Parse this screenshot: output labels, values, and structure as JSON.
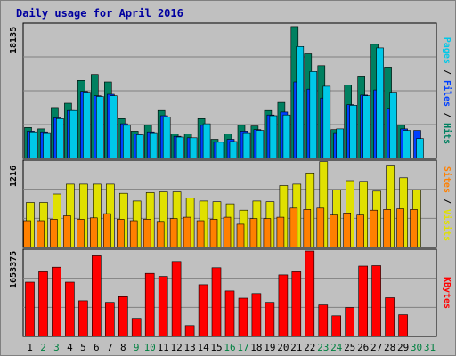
{
  "chart_data": {
    "type": "bar",
    "title": "Daily usage for April 2016",
    "days": [
      "1",
      "2",
      "3",
      "4",
      "5",
      "6",
      "7",
      "8",
      "9",
      "10",
      "11",
      "12",
      "13",
      "14",
      "15",
      "16",
      "17",
      "18",
      "19",
      "20",
      "21",
      "22",
      "23",
      "24",
      "25",
      "26",
      "27",
      "28",
      "29",
      "30",
      "31"
    ],
    "weekend_days": [
      "2",
      "3",
      "9",
      "10",
      "16",
      "17",
      "23",
      "24",
      "30",
      "31"
    ],
    "y_axis_max_labels": {
      "top": "18135",
      "middle": "1216",
      "bottom": "1653375"
    },
    "right_labels": {
      "top": [
        {
          "text": "Pages",
          "color": "#00C8E8"
        },
        {
          "text": " / ",
          "color": "#000000"
        },
        {
          "text": "Files",
          "color": "#0040FF"
        },
        {
          "text": " / ",
          "color": "#000000"
        },
        {
          "text": "Hits",
          "color": "#008060"
        }
      ],
      "middle": [
        {
          "text": "Sites",
          "color": "#FF8000"
        },
        {
          "text": " / ",
          "color": "#000000"
        },
        {
          "text": "Visits",
          "color": "#E0E000"
        }
      ],
      "bottom": [
        {
          "text": "KBytes",
          "color": "#FF0000"
        }
      ]
    },
    "series": [
      {
        "name": "Hits",
        "panel": "top",
        "color": "#008060",
        "values": [
          4200,
          4000,
          6900,
          7500,
          10600,
          11400,
          10400,
          5400,
          3700,
          4500,
          6500,
          3300,
          3300,
          5400,
          2600,
          3300,
          4500,
          4400,
          6500,
          7600,
          17900,
          14200,
          12600,
          3900,
          10000,
          11200,
          15500,
          12400,
          4500,
          null,
          null
        ]
      },
      {
        "name": "Files",
        "panel": "top",
        "color": "#0040FF",
        "values": [
          3700,
          3600,
          5500,
          6500,
          9100,
          8500,
          8700,
          4700,
          3300,
          3600,
          5800,
          3000,
          2800,
          4500,
          2200,
          2600,
          3700,
          3900,
          5900,
          6300,
          10400,
          9400,
          8200,
          3500,
          7300,
          8600,
          9300,
          6800,
          4000,
          3800,
          null
        ]
      },
      {
        "name": "Pages",
        "panel": "top",
        "color": "#00C8E8",
        "values": [
          3600,
          3500,
          5400,
          6500,
          9000,
          8400,
          8500,
          4500,
          3200,
          3500,
          5600,
          2900,
          2800,
          4700,
          2200,
          2300,
          3500,
          3800,
          5800,
          5900,
          15200,
          11800,
          9800,
          4000,
          7200,
          8500,
          15000,
          9000,
          3800,
          2700,
          null
        ]
      },
      {
        "name": "Visits",
        "panel": "middle",
        "color": "#E0E000",
        "values": [
          640,
          640,
          760,
          900,
          900,
          900,
          900,
          770,
          660,
          780,
          790,
          790,
          700,
          660,
          650,
          620,
          530,
          660,
          650,
          880,
          900,
          1060,
          1220,
          820,
          950,
          940,
          800,
          1170,
          990,
          820,
          null
        ]
      },
      {
        "name": "Sites",
        "panel": "middle",
        "color": "#FF8000",
        "values": [
          380,
          380,
          400,
          450,
          400,
          420,
          480,
          400,
          380,
          400,
          370,
          410,
          430,
          380,
          400,
          430,
          330,
          410,
          410,
          430,
          560,
          540,
          560,
          460,
          490,
          460,
          530,
          540,
          550,
          540,
          null
        ]
      },
      {
        "name": "KBytes",
        "panel": "bottom",
        "color": "#FF0000",
        "values": [
          1050000,
          1250000,
          1340000,
          1050000,
          690000,
          1560000,
          660000,
          770000,
          350000,
          1220000,
          1160000,
          1450000,
          210000,
          1000000,
          1330000,
          880000,
          740000,
          830000,
          660000,
          1190000,
          1250000,
          1653000,
          610000,
          400000,
          560000,
          1360000,
          1370000,
          750000,
          420000,
          null,
          null
        ]
      }
    ]
  }
}
